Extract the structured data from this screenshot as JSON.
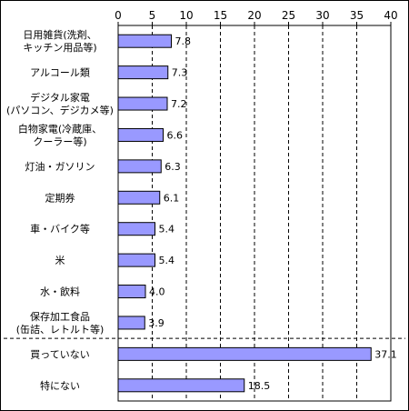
{
  "chart_data": {
    "type": "bar",
    "orientation": "horizontal",
    "categories": [
      [
        "日用雑貨(洗剤、",
        "キッチン用品等)"
      ],
      [
        "アルコール類"
      ],
      [
        "デジタル家電",
        "(パソコン、デジカメ等)"
      ],
      [
        "白物家電(冷蔵庫、",
        "クーラー等)"
      ],
      [
        "灯油・ガソリン"
      ],
      [
        "定期券"
      ],
      [
        "車・バイク等"
      ],
      [
        "米"
      ],
      [
        "水・飲料"
      ],
      [
        "保存加工食品",
        "(缶詰、レトルト等)"
      ],
      [
        "買っていない"
      ],
      [
        "特にない"
      ]
    ],
    "values": [
      7.8,
      7.3,
      7.2,
      6.6,
      6.3,
      6.1,
      5.4,
      5.4,
      4.0,
      3.9,
      37.1,
      18.5
    ],
    "value_labels": [
      "7.8",
      "7.3",
      "7.2",
      "6.6",
      "6.3",
      "6.1",
      "5.4",
      "5.4",
      "4.0",
      "3.9",
      "37.1",
      "18.5"
    ],
    "xlim": [
      0,
      40
    ],
    "xticks": [
      0,
      5,
      10,
      15,
      20,
      25,
      30,
      35,
      40
    ],
    "x_axis_position": "top",
    "grid": "vertical dashed",
    "separator_after_index": 9,
    "bar_color": "#9999ff",
    "bar_edge_color": "#000000",
    "title": "",
    "xlabel": "",
    "ylabel": ""
  }
}
